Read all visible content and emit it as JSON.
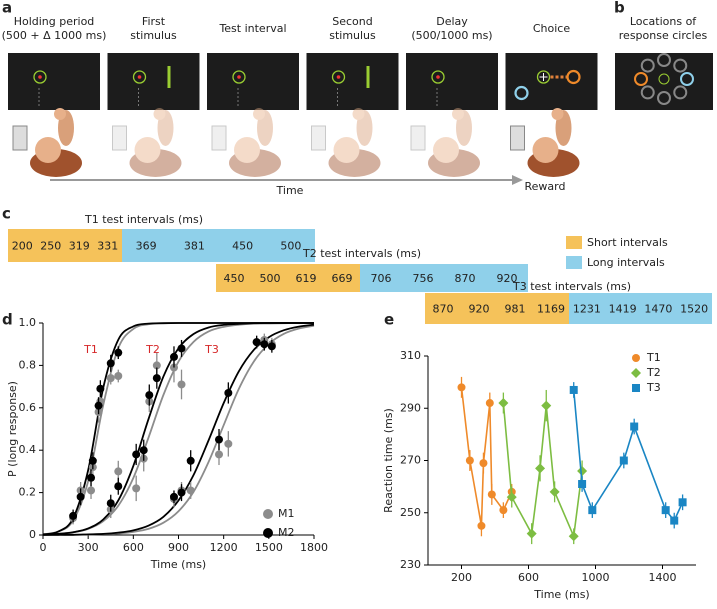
{
  "panel_a": {
    "label": "a",
    "steps": [
      {
        "lines": [
          "Holding period",
          "(500 + Δ 1000 ms)"
        ]
      },
      {
        "lines": [
          "First",
          "stimulus"
        ]
      },
      {
        "lines": [
          "Test interval"
        ]
      },
      {
        "lines": [
          "Second",
          "stimulus"
        ]
      },
      {
        "lines": [
          "Delay",
          "(500/1000 ms)"
        ]
      },
      {
        "lines": [
          "Choice"
        ]
      }
    ],
    "time_label": "Time",
    "reward_label": "Reward"
  },
  "panel_b": {
    "label": "b",
    "lines": [
      "Locations of",
      "response circles"
    ]
  },
  "panel_c": {
    "label": "c",
    "short_color": "#f5c25a",
    "long_color": "#8fd0ea",
    "rows": [
      {
        "title": "T1 test intervals (ms)",
        "short": [
          200,
          250,
          319,
          331
        ],
        "long": [
          369,
          381,
          450,
          500
        ]
      },
      {
        "title": "T2 test intervals (ms)",
        "short": [
          450,
          500,
          619,
          669
        ],
        "long": [
          706,
          756,
          870,
          920
        ]
      },
      {
        "title": "T3 test intervals (ms)",
        "short": [
          870,
          920,
          981,
          1169
        ],
        "long": [
          1231,
          1419,
          1470,
          1520
        ]
      }
    ],
    "legend": {
      "short": "Short intervals",
      "long": "Long intervals"
    }
  },
  "chart_data": [
    {
      "type": "scatter",
      "label": "d",
      "xlabel": "Time (ms)",
      "ylabel": "P (long response)",
      "xlim": [
        0,
        1800
      ],
      "xticks": [
        0,
        300,
        600,
        900,
        1200,
        1500,
        1800
      ],
      "ylim": [
        0,
        1
      ],
      "yticks": [
        0,
        0.2,
        0.4,
        0.6,
        0.8,
        {
          "value": 1,
          "label": "1.0"
        }
      ],
      "annotations": [
        "T1",
        "T2",
        "T3"
      ],
      "annotation_color": "#d62728",
      "series": [
        {
          "name": "M1",
          "color": "#8c8c8c",
          "x": [
            200,
            250,
            319,
            331,
            369,
            381,
            450,
            500,
            450,
            500,
            619,
            669,
            706,
            756,
            870,
            920,
            870,
            920,
            981,
            1169,
            1231,
            1419,
            1470,
            1520
          ],
          "values": [
            0.08,
            0.21,
            0.21,
            0.32,
            0.58,
            0.63,
            0.74,
            0.75,
            0.12,
            0.3,
            0.22,
            0.36,
            0.63,
            0.8,
            0.79,
            0.71,
            0.17,
            0.21,
            0.21,
            0.38,
            0.43,
            0.91,
            0.92,
            0.9
          ],
          "errors": [
            0.03,
            0.04,
            0.04,
            0.05,
            0.05,
            0.04,
            0.03,
            0.03,
            0.04,
            0.05,
            0.06,
            0.06,
            0.05,
            0.06,
            0.07,
            0.07,
            0.04,
            0.04,
            0.04,
            0.05,
            0.06,
            0.03,
            0.03,
            0.03
          ]
        },
        {
          "name": "M2",
          "color": "#000000",
          "x": [
            200,
            250,
            319,
            331,
            369,
            381,
            450,
            500,
            450,
            500,
            619,
            669,
            706,
            756,
            870,
            920,
            870,
            920,
            981,
            1169,
            1231,
            1419,
            1470,
            1520
          ],
          "values": [
            0.09,
            0.18,
            0.27,
            0.35,
            0.61,
            0.69,
            0.81,
            0.86,
            0.15,
            0.23,
            0.38,
            0.4,
            0.66,
            0.74,
            0.84,
            0.88,
            0.18,
            0.2,
            0.35,
            0.45,
            0.67,
            0.91,
            0.9,
            0.89
          ],
          "errors": [
            0.03,
            0.04,
            0.04,
            0.04,
            0.04,
            0.04,
            0.04,
            0.03,
            0.04,
            0.04,
            0.05,
            0.05,
            0.05,
            0.05,
            0.05,
            0.04,
            0.03,
            0.04,
            0.05,
            0.05,
            0.05,
            0.03,
            0.03,
            0.03
          ]
        }
      ],
      "fits": {
        "x": [
          0,
          100,
          200,
          300,
          400,
          500,
          600,
          700,
          800,
          900,
          1000,
          1100,
          1200,
          1300,
          1400,
          1500,
          1600,
          1700,
          1800
        ],
        "series": [
          {
            "color": "#8c8c8c",
            "values": [
              0.003,
              0.016,
              0.068,
              0.254,
              0.613,
              0.881,
              0.972,
              0.994,
              0.999,
              1,
              1,
              1,
              1,
              1,
              1,
              1,
              1,
              1,
              1
            ]
          },
          {
            "color": "#8c8c8c",
            "values": [
              0.002,
              0.006,
              0.013,
              0.029,
              0.065,
              0.138,
              0.269,
              0.458,
              0.661,
              0.818,
              0.911,
              0.96,
              0.982,
              0.992,
              0.997,
              0.998,
              0.999,
              1,
              1
            ]
          },
          {
            "color": "#8c8c8c",
            "values": [
              0,
              0,
              0.001,
              0.002,
              0.004,
              0.007,
              0.015,
              0.029,
              0.058,
              0.112,
              0.204,
              0.345,
              0.518,
              0.688,
              0.818,
              0.901,
              0.949,
              0.974,
              0.987
            ]
          },
          {
            "color": "#000000",
            "values": [
              0.003,
              0.016,
              0.079,
              0.306,
              0.694,
              0.921,
              0.984,
              0.997,
              0.999,
              1,
              1,
              1,
              1,
              1,
              1,
              1,
              1,
              1,
              1
            ]
          },
          {
            "color": "#000000",
            "values": [
              0.002,
              0.005,
              0.013,
              0.031,
              0.073,
              0.163,
              0.326,
              0.545,
              0.748,
              0.881,
              0.948,
              0.979,
              0.991,
              0.996,
              0.999,
              1,
              1,
              1,
              1
            ]
          },
          {
            "color": "#000000",
            "values": [
              0,
              0.001,
              0.001,
              0.003,
              0.005,
              0.011,
              0.022,
              0.044,
              0.086,
              0.163,
              0.283,
              0.447,
              0.622,
              0.771,
              0.873,
              0.933,
              0.966,
              0.983,
              0.992
            ]
          }
        ]
      }
    },
    {
      "type": "line",
      "label": "e",
      "xlabel": "Time (ms)",
      "ylabel": "Reaction time (ms)",
      "xlim": [
        0,
        1600
      ],
      "xticks": [
        200,
        600,
        1000,
        1400
      ],
      "ylim": [
        230,
        310
      ],
      "yticks": [
        230,
        250,
        270,
        290,
        310
      ],
      "series": [
        {
          "name": "T1",
          "color": "#ef8a2a",
          "marker": "circle",
          "x": [
            200,
            250,
            319,
            331,
            369,
            381,
            450,
            500
          ],
          "values": [
            298,
            270,
            245,
            269,
            292,
            257,
            251,
            258
          ],
          "errors": [
            4,
            4,
            4,
            4,
            4,
            4,
            3,
            3
          ]
        },
        {
          "name": "T2",
          "color": "#7dbd42",
          "marker": "diamond",
          "x": [
            450,
            500,
            619,
            669,
            706,
            756,
            870,
            920
          ],
          "values": [
            292,
            256,
            242,
            267,
            291,
            258,
            241,
            266
          ],
          "errors": [
            4,
            4,
            4,
            5,
            6,
            4,
            3,
            4
          ]
        },
        {
          "name": "T3",
          "color": "#1a86c4",
          "marker": "square",
          "x": [
            870,
            920,
            981,
            1169,
            1231,
            1419,
            1470,
            1520
          ],
          "values": [
            297,
            261,
            251,
            270,
            283,
            251,
            247,
            254
          ],
          "errors": [
            3,
            3,
            3,
            3,
            3,
            3,
            3,
            3
          ]
        }
      ]
    }
  ]
}
